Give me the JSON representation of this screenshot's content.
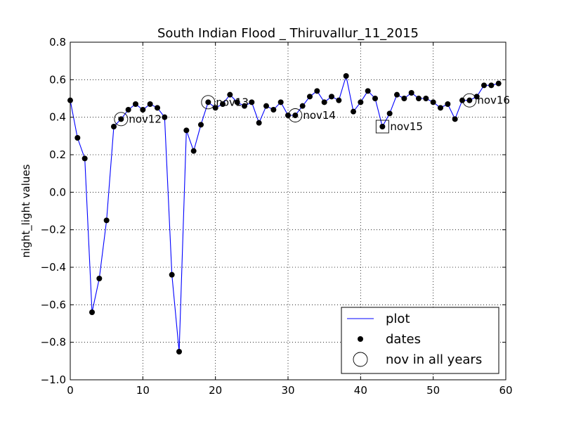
{
  "chart_data": {
    "type": "line",
    "title": "South Indian Flood _ Thiruvallur_11_2015",
    "xlabel": "",
    "ylabel": "night_light values",
    "xlim": [
      0,
      60
    ],
    "ylim": [
      -1.0,
      0.8
    ],
    "x_ticks": [
      "0",
      "10",
      "20",
      "30",
      "40",
      "50",
      "60"
    ],
    "y_ticks": [
      "−1.0",
      "−0.8",
      "−0.6",
      "−0.4",
      "−0.2",
      "0.0",
      "0.2",
      "0.4",
      "0.6",
      "0.8"
    ],
    "grid": true,
    "legend_position": "lower-right",
    "colors": {
      "line": "#0000ff",
      "marker": "#000000"
    },
    "series": [
      {
        "name": "plot",
        "x": [
          0,
          1,
          2,
          3,
          4,
          5,
          6,
          7,
          8,
          9,
          10,
          11,
          12,
          13,
          14,
          15,
          16,
          17,
          18,
          19,
          20,
          21,
          22,
          23,
          24,
          25,
          26,
          27,
          28,
          29,
          30,
          31,
          32,
          33,
          34,
          35,
          36,
          37,
          38,
          39,
          40,
          41,
          42,
          43,
          44,
          45,
          46,
          47,
          48,
          49,
          50,
          51,
          52,
          53,
          54,
          55,
          56,
          57,
          58,
          59
        ],
        "y": [
          0.49,
          0.29,
          0.18,
          -0.64,
          -0.46,
          -0.15,
          0.35,
          0.39,
          0.44,
          0.47,
          0.44,
          0.47,
          0.45,
          0.4,
          -0.44,
          -0.85,
          0.33,
          0.22,
          0.36,
          0.48,
          0.45,
          0.47,
          0.52,
          0.48,
          0.46,
          0.48,
          0.37,
          0.46,
          0.44,
          0.48,
          0.41,
          0.41,
          0.46,
          0.51,
          0.54,
          0.48,
          0.51,
          0.49,
          0.62,
          0.43,
          0.48,
          0.54,
          0.5,
          0.35,
          0.42,
          0.52,
          0.5,
          0.53,
          0.5,
          0.5,
          0.48,
          0.45,
          0.47,
          0.39,
          0.49,
          0.49,
          0.51,
          0.57,
          0.57,
          0.58
        ]
      }
    ],
    "legend": [
      "plot",
      "dates",
      "nov in all years"
    ],
    "highlights": [
      {
        "label": "nov12",
        "x": 7,
        "y": 0.39,
        "marker": "circle"
      },
      {
        "label": "nov13",
        "x": 19,
        "y": 0.48,
        "marker": "circle"
      },
      {
        "label": "nov14",
        "x": 31,
        "y": 0.41,
        "marker": "circle"
      },
      {
        "label": "nov15",
        "x": 43,
        "y": 0.35,
        "marker": "square"
      },
      {
        "label": "nov16",
        "x": 55,
        "y": 0.49,
        "marker": "circle"
      }
    ]
  }
}
